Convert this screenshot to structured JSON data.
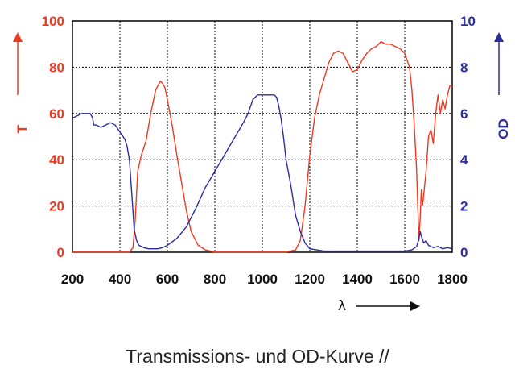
{
  "chart_data": {
    "type": "line",
    "xlabel": "λ",
    "ylabel_left": "T",
    "ylabel_right": "OD",
    "caption": "Transmissions- und OD-Kurve //",
    "xlim": [
      200,
      1800
    ],
    "ylim_left": [
      0,
      100
    ],
    "ylim_right": [
      0,
      10
    ],
    "x_ticks": [
      "200",
      "400",
      "600",
      "800",
      "1000",
      "1200",
      "1400",
      "1600",
      "1800"
    ],
    "y_left_ticks": [
      "0",
      "20",
      "40",
      "60",
      "80",
      "100"
    ],
    "y_right_ticks": [
      "0",
      "2",
      "4",
      "6",
      "8",
      "10"
    ],
    "grid": true,
    "colors": {
      "T": "#ee3a22",
      "OD": "#2b2f9e",
      "axis_text": "#111111"
    },
    "series": [
      {
        "axis": "left",
        "x": [
          200,
          440,
          455,
          465,
          475,
          490,
          510,
          530,
          550,
          560,
          570,
          580,
          590,
          600,
          620,
          640,
          660,
          680,
          700,
          730,
          760,
          800,
          1100,
          1140,
          1160,
          1180,
          1200,
          1220,
          1240,
          1260,
          1280,
          1300,
          1320,
          1340,
          1360,
          1380,
          1400,
          1420,
          1440,
          1460,
          1480,
          1500,
          1520,
          1540,
          1560,
          1580,
          1600,
          1620,
          1630,
          1640,
          1650,
          1655,
          1660,
          1665,
          1670,
          1675,
          1680,
          1690,
          1700,
          1710,
          1720,
          1730,
          1740,
          1750,
          1760,
          1770,
          1780,
          1790,
          1800
        ],
        "y": [
          0,
          0,
          2,
          15,
          35,
          42,
          48,
          60,
          70,
          72,
          74,
          73,
          71,
          66,
          55,
          42,
          30,
          18,
          9,
          3,
          1,
          0,
          0,
          1,
          5,
          20,
          42,
          58,
          68,
          75,
          82,
          86,
          87,
          86,
          82,
          78,
          79,
          83,
          86,
          88,
          89,
          91,
          90,
          90,
          89,
          88,
          86,
          80,
          70,
          55,
          35,
          20,
          5,
          15,
          27,
          20,
          25,
          35,
          50,
          53,
          47,
          60,
          68,
          60,
          66,
          62,
          68,
          72,
          72
        ]
      },
      {
        "axis": "right",
        "x": [
          200,
          220,
          240,
          260,
          275,
          285,
          290,
          300,
          320,
          340,
          360,
          380,
          400,
          420,
          430,
          440,
          450,
          460,
          470,
          480,
          500,
          520,
          540,
          560,
          580,
          600,
          640,
          680,
          720,
          760,
          800,
          840,
          880,
          920,
          940,
          960,
          980,
          1000,
          1020,
          1040,
          1050,
          1060,
          1070,
          1080,
          1090,
          1100,
          1120,
          1140,
          1160,
          1180,
          1200,
          1260,
          1300,
          1400,
          1500,
          1560,
          1600,
          1630,
          1650,
          1660,
          1665,
          1670,
          1680,
          1690,
          1700,
          1720,
          1740,
          1760,
          1780,
          1800
        ],
        "y": [
          5.8,
          5.9,
          6.0,
          6.0,
          6.0,
          5.8,
          5.5,
          5.5,
          5.4,
          5.5,
          5.6,
          5.5,
          5.2,
          4.9,
          4.6,
          4.0,
          2.5,
          1.0,
          0.5,
          0.3,
          0.2,
          0.15,
          0.15,
          0.15,
          0.2,
          0.3,
          0.6,
          1.1,
          1.9,
          2.8,
          3.5,
          4.2,
          4.9,
          5.6,
          6.0,
          6.6,
          6.8,
          6.8,
          6.8,
          6.8,
          6.8,
          6.7,
          6.3,
          5.7,
          4.9,
          4.0,
          2.9,
          1.6,
          0.9,
          0.4,
          0.15,
          0.05,
          0.05,
          0.05,
          0.05,
          0.05,
          0.05,
          0.1,
          0.25,
          0.6,
          0.9,
          0.7,
          0.4,
          0.5,
          0.3,
          0.2,
          0.25,
          0.15,
          0.2,
          0.15
        ]
      }
    ]
  }
}
